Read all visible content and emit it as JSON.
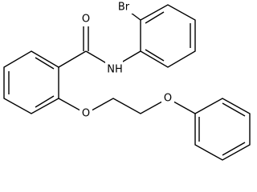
{
  "atoms": [
    {
      "label": "O"
    },
    {
      "label": "NH"
    },
    {
      "label": "Br"
    },
    {
      "label": "O"
    },
    {
      "label": "O"
    }
  ]
}
